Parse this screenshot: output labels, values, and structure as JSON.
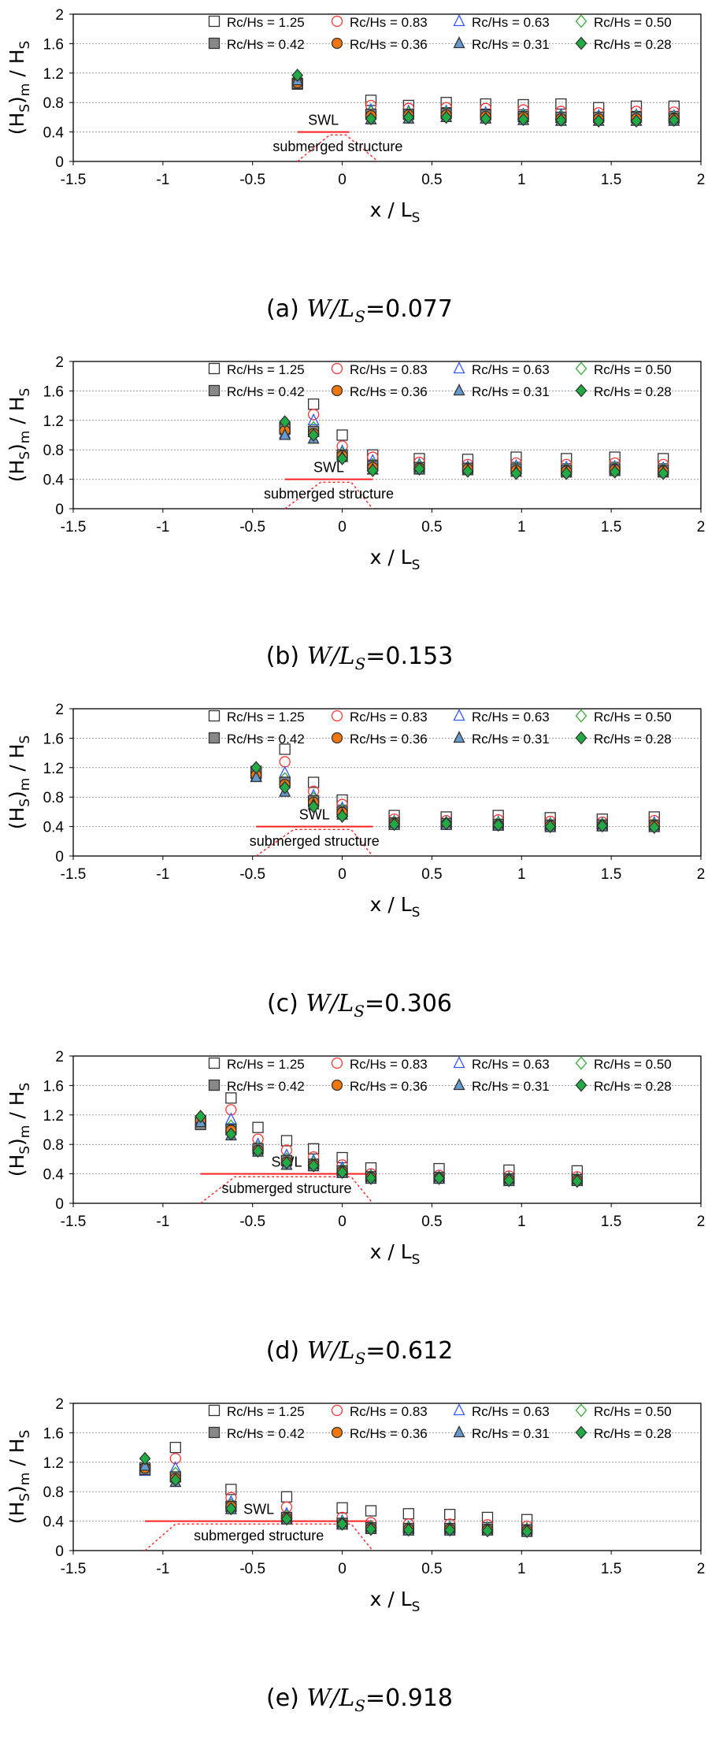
{
  "series_styles": [
    {
      "name": "Rc/Hs = 1.25",
      "marker": "square",
      "fill": "none",
      "stroke": "#333333"
    },
    {
      "name": "Rc/Hs = 0.83",
      "marker": "circle",
      "fill": "none",
      "stroke": "#ff3333"
    },
    {
      "name": "Rc/Hs = 0.63",
      "marker": "triangle",
      "fill": "none",
      "stroke": "#3355ff"
    },
    {
      "name": "Rc/Hs = 0.50",
      "marker": "diamond",
      "fill": "none",
      "stroke": "#33aa33"
    },
    {
      "name": "Rc/Hs = 0.42",
      "marker": "square",
      "fill": "#888888",
      "stroke": "#333333"
    },
    {
      "name": "Rc/Hs = 0.36",
      "marker": "circle",
      "fill": "#ee7711",
      "stroke": "#333333"
    },
    {
      "name": "Rc/Hs = 0.31",
      "marker": "triangle",
      "fill": "#6699cc",
      "stroke": "#333333"
    },
    {
      "name": "Rc/Hs = 0.28",
      "marker": "diamond",
      "fill": "#22aa44",
      "stroke": "#333333"
    }
  ],
  "colors": {
    "swl_line": "#ff2222",
    "grid": "#999999"
  },
  "chart_data": [
    {
      "type": "scatter",
      "caption_label": "(a)",
      "caption_ratio": "W/L",
      "caption_sub": "S",
      "caption_value": "=0.077",
      "xlabel": "x / L",
      "xlabel_sub": "S",
      "ylabel": "(H",
      "ylabel_sub1": "S",
      "ylabel_mid": ")",
      "ylabel_sub2": "m",
      "ylabel_end": " / H",
      "ylabel_sub3": "S",
      "xlim": [
        -1.5,
        2
      ],
      "ylim": [
        0,
        2
      ],
      "xticks": [
        -1.5,
        -1,
        -0.5,
        0,
        0.5,
        1,
        1.5,
        2
      ],
      "yticks": [
        0,
        0.4,
        0.8,
        1.2,
        1.6,
        2
      ],
      "swl_label": "SWL",
      "structure_label": "submerged structure",
      "swl_x": [
        -0.25,
        0.04
      ],
      "structure": {
        "toe_left": -0.25,
        "crest_left": -0.07,
        "crest_right": 0.02,
        "toe_right": 0.2
      },
      "x": [
        -0.25,
        0.16,
        0.37,
        0.58,
        0.8,
        1.01,
        1.22,
        1.43,
        1.64,
        1.85
      ],
      "series": [
        {
          "name": "Rc/Hs = 1.25",
          "values": [
            1.05,
            0.83,
            0.76,
            0.8,
            0.78,
            0.77,
            0.78,
            0.73,
            0.75,
            0.75
          ]
        },
        {
          "name": "Rc/Hs = 0.83",
          "values": [
            1.1,
            0.76,
            0.72,
            0.73,
            0.72,
            0.7,
            0.68,
            0.66,
            0.68,
            0.67
          ]
        },
        {
          "name": "Rc/Hs = 0.63",
          "values": [
            1.08,
            0.7,
            0.68,
            0.68,
            0.66,
            0.64,
            0.63,
            0.62,
            0.63,
            0.62
          ]
        },
        {
          "name": "Rc/Hs = 0.50",
          "values": [
            1.12,
            0.67,
            0.66,
            0.66,
            0.63,
            0.62,
            0.61,
            0.6,
            0.61,
            0.6
          ]
        },
        {
          "name": "Rc/Hs = 0.42",
          "values": [
            1.06,
            0.64,
            0.64,
            0.65,
            0.63,
            0.61,
            0.6,
            0.6,
            0.6,
            0.59
          ]
        },
        {
          "name": "Rc/Hs = 0.36",
          "values": [
            1.07,
            0.62,
            0.63,
            0.63,
            0.61,
            0.6,
            0.58,
            0.58,
            0.58,
            0.58
          ]
        },
        {
          "name": "Rc/Hs = 0.31",
          "values": [
            1.1,
            0.57,
            0.58,
            0.6,
            0.58,
            0.56,
            0.55,
            0.55,
            0.55,
            0.55
          ]
        },
        {
          "name": "Rc/Hs = 0.28",
          "values": [
            1.17,
            0.58,
            0.6,
            0.6,
            0.58,
            0.57,
            0.56,
            0.55,
            0.55,
            0.56
          ]
        }
      ]
    },
    {
      "type": "scatter",
      "caption_label": "(b)",
      "caption_ratio": "W/L",
      "caption_sub": "S",
      "caption_value": "=0.153",
      "xlabel": "x / L",
      "xlabel_sub": "S",
      "ylabel": "(H",
      "ylabel_sub1": "S",
      "ylabel_mid": ")",
      "ylabel_sub2": "m",
      "ylabel_end": " / H",
      "ylabel_sub3": "S",
      "xlim": [
        -1.5,
        2
      ],
      "ylim": [
        0,
        2
      ],
      "xticks": [
        -1.5,
        -1,
        -0.5,
        0,
        0.5,
        1,
        1.5,
        2
      ],
      "yticks": [
        0,
        0.4,
        0.8,
        1.2,
        1.6,
        2
      ],
      "swl_label": "SWL",
      "structure_label": "submerged structure",
      "swl_x": [
        -0.32,
        0.17
      ],
      "structure": {
        "toe_left": -0.32,
        "crest_left": -0.12,
        "crest_right": 0.05,
        "toe_right": 0.17
      },
      "x": [
        -0.32,
        -0.16,
        0.0,
        0.17,
        0.43,
        0.7,
        0.97,
        1.25,
        1.52,
        1.79
      ],
      "series": [
        {
          "name": "Rc/Hs = 1.25",
          "values": [
            1.1,
            1.42,
            1.0,
            0.73,
            0.68,
            0.67,
            0.7,
            0.68,
            0.7,
            0.68
          ]
        },
        {
          "name": "Rc/Hs = 0.83",
          "values": [
            1.05,
            1.28,
            0.85,
            0.7,
            0.63,
            0.6,
            0.62,
            0.6,
            0.62,
            0.6
          ]
        },
        {
          "name": "Rc/Hs = 0.63",
          "values": [
            1.02,
            1.2,
            0.78,
            0.65,
            0.6,
            0.57,
            0.58,
            0.56,
            0.57,
            0.55
          ]
        },
        {
          "name": "Rc/Hs = 0.50",
          "values": [
            1.12,
            1.1,
            0.75,
            0.6,
            0.58,
            0.55,
            0.55,
            0.53,
            0.55,
            0.53
          ]
        },
        {
          "name": "Rc/Hs = 0.42",
          "values": [
            1.08,
            1.05,
            0.73,
            0.58,
            0.56,
            0.55,
            0.54,
            0.52,
            0.54,
            0.52
          ]
        },
        {
          "name": "Rc/Hs = 0.36",
          "values": [
            1.06,
            1.02,
            0.72,
            0.56,
            0.55,
            0.54,
            0.52,
            0.51,
            0.53,
            0.51
          ]
        },
        {
          "name": "Rc/Hs = 0.31",
          "values": [
            1.0,
            0.95,
            0.7,
            0.53,
            0.53,
            0.52,
            0.5,
            0.49,
            0.51,
            0.49
          ]
        },
        {
          "name": "Rc/Hs = 0.28",
          "values": [
            1.18,
            1.0,
            0.68,
            0.52,
            0.54,
            0.51,
            0.48,
            0.48,
            0.5,
            0.48
          ]
        }
      ]
    },
    {
      "type": "scatter",
      "caption_label": "(c)",
      "caption_ratio": "W/L",
      "caption_sub": "S",
      "caption_value": "=0.306",
      "xlabel": "x / L",
      "xlabel_sub": "S",
      "ylabel": "(H",
      "ylabel_sub1": "S",
      "ylabel_mid": ")",
      "ylabel_sub2": "m",
      "ylabel_end": " / H",
      "ylabel_sub3": "S",
      "xlim": [
        -1.5,
        2
      ],
      "ylim": [
        0,
        2
      ],
      "xticks": [
        -1.5,
        -1,
        -0.5,
        0,
        0.5,
        1,
        1.5,
        2
      ],
      "yticks": [
        0,
        0.4,
        0.8,
        1.2,
        1.6,
        2
      ],
      "swl_label": "SWL",
      "structure_label": "submerged structure",
      "swl_x": [
        -0.48,
        0.17
      ],
      "structure": {
        "toe_left": -0.48,
        "crest_left": -0.27,
        "crest_right": 0.05,
        "toe_right": 0.17
      },
      "x": [
        -0.48,
        -0.32,
        -0.16,
        0.0,
        0.29,
        0.58,
        0.87,
        1.16,
        1.45,
        1.74
      ],
      "series": [
        {
          "name": "Rc/Hs = 1.25",
          "values": [
            1.15,
            1.45,
            1.0,
            0.76,
            0.55,
            0.53,
            0.55,
            0.52,
            0.5,
            0.53
          ]
        },
        {
          "name": "Rc/Hs = 0.83",
          "values": [
            1.12,
            1.28,
            0.88,
            0.7,
            0.5,
            0.48,
            0.49,
            0.47,
            0.46,
            0.48
          ]
        },
        {
          "name": "Rc/Hs = 0.63",
          "values": [
            1.08,
            1.13,
            0.82,
            0.65,
            0.47,
            0.46,
            0.46,
            0.44,
            0.44,
            0.45
          ]
        },
        {
          "name": "Rc/Hs = 0.50",
          "values": [
            1.1,
            1.05,
            0.78,
            0.62,
            0.46,
            0.45,
            0.45,
            0.43,
            0.43,
            0.43
          ]
        },
        {
          "name": "Rc/Hs = 0.42",
          "values": [
            1.12,
            1.0,
            0.75,
            0.6,
            0.45,
            0.44,
            0.43,
            0.42,
            0.42,
            0.42
          ]
        },
        {
          "name": "Rc/Hs = 0.36",
          "values": [
            1.1,
            0.97,
            0.73,
            0.59,
            0.44,
            0.43,
            0.42,
            0.41,
            0.41,
            0.41
          ]
        },
        {
          "name": "Rc/Hs = 0.31",
          "values": [
            1.07,
            0.87,
            0.7,
            0.56,
            0.42,
            0.42,
            0.41,
            0.39,
            0.4,
            0.39
          ]
        },
        {
          "name": "Rc/Hs = 0.28",
          "values": [
            1.2,
            0.93,
            0.67,
            0.54,
            0.43,
            0.44,
            0.42,
            0.4,
            0.41,
            0.39
          ]
        }
      ]
    },
    {
      "type": "scatter",
      "caption_label": "(d)",
      "caption_ratio": "W/L",
      "caption_sub": "S",
      "caption_value": "=0.612",
      "xlabel": "x / L",
      "xlabel_sub": "S",
      "ylabel": "(H",
      "ylabel_sub1": "S",
      "ylabel_mid": ")",
      "ylabel_sub2": "m",
      "ylabel_end": " / H",
      "ylabel_sub3": "S",
      "xlim": [
        -1.5,
        2
      ],
      "ylim": [
        0,
        2
      ],
      "xticks": [
        -1.5,
        -1,
        -0.5,
        0,
        0.5,
        1,
        1.5,
        2
      ],
      "yticks": [
        0,
        0.4,
        0.8,
        1.2,
        1.6,
        2
      ],
      "swl_label": "SWL",
      "structure_label": "submerged structure",
      "swl_x": [
        -0.79,
        0.17
      ],
      "structure": {
        "toe_left": -0.79,
        "crest_left": -0.6,
        "crest_right": 0.05,
        "toe_right": 0.17
      },
      "x": [
        -0.79,
        -0.62,
        -0.47,
        -0.31,
        -0.16,
        0.0,
        0.16,
        0.54,
        0.93,
        1.31
      ],
      "series": [
        {
          "name": "Rc/Hs = 1.25",
          "values": [
            1.12,
            1.43,
            1.03,
            0.85,
            0.74,
            0.62,
            0.48,
            0.47,
            0.45,
            0.44
          ]
        },
        {
          "name": "Rc/Hs = 0.83",
          "values": [
            1.1,
            1.27,
            0.87,
            0.72,
            0.63,
            0.52,
            0.4,
            0.38,
            0.37,
            0.36
          ]
        },
        {
          "name": "Rc/Hs = 0.63",
          "values": [
            1.08,
            1.14,
            0.8,
            0.65,
            0.58,
            0.48,
            0.38,
            0.36,
            0.35,
            0.34
          ]
        },
        {
          "name": "Rc/Hs = 0.50",
          "values": [
            1.1,
            1.05,
            0.76,
            0.6,
            0.55,
            0.45,
            0.37,
            0.35,
            0.34,
            0.33
          ]
        },
        {
          "name": "Rc/Hs = 0.42",
          "values": [
            1.07,
            1.0,
            0.74,
            0.58,
            0.53,
            0.44,
            0.36,
            0.35,
            0.33,
            0.32
          ]
        },
        {
          "name": "Rc/Hs = 0.36",
          "values": [
            1.13,
            0.99,
            0.72,
            0.56,
            0.52,
            0.43,
            0.35,
            0.34,
            0.32,
            0.31
          ]
        },
        {
          "name": "Rc/Hs = 0.31",
          "values": [
            1.1,
            0.92,
            0.7,
            0.52,
            0.5,
            0.41,
            0.33,
            0.33,
            0.3,
            0.3
          ]
        },
        {
          "name": "Rc/Hs = 0.28",
          "values": [
            1.18,
            0.94,
            0.71,
            0.55,
            0.51,
            0.42,
            0.34,
            0.34,
            0.31,
            0.3
          ]
        }
      ]
    },
    {
      "type": "scatter",
      "caption_label": "(e)",
      "caption_ratio": "W/L",
      "caption_sub": "S",
      "caption_value": "=0.918",
      "xlabel": "x / L",
      "xlabel_sub": "S",
      "ylabel": "(H",
      "ylabel_sub1": "S",
      "ylabel_mid": ")",
      "ylabel_sub2": "m",
      "ylabel_end": " / H",
      "ylabel_sub3": "S",
      "xlim": [
        -1.5,
        2
      ],
      "ylim": [
        0,
        2
      ],
      "xticks": [
        -1.5,
        -1,
        -0.5,
        0,
        0.5,
        1,
        1.5,
        2
      ],
      "yticks": [
        0,
        0.4,
        0.8,
        1.2,
        1.6,
        2
      ],
      "swl_label": "SWL",
      "structure_label": "submerged structure",
      "swl_x": [
        -1.1,
        0.17
      ],
      "structure": {
        "toe_left": -1.1,
        "crest_left": -0.93,
        "crest_right": 0.05,
        "toe_right": 0.17
      },
      "x": [
        -1.1,
        -0.93,
        -0.62,
        -0.31,
        0.0,
        0.16,
        0.37,
        0.6,
        0.81,
        1.03
      ],
      "series": [
        {
          "name": "Rc/Hs = 1.25",
          "values": [
            1.12,
            1.4,
            0.83,
            0.73,
            0.58,
            0.54,
            0.5,
            0.49,
            0.45,
            0.42
          ]
        },
        {
          "name": "Rc/Hs = 0.83",
          "values": [
            1.1,
            1.25,
            0.72,
            0.59,
            0.45,
            0.38,
            0.36,
            0.36,
            0.35,
            0.33
          ]
        },
        {
          "name": "Rc/Hs = 0.63",
          "values": [
            1.08,
            1.12,
            0.66,
            0.5,
            0.4,
            0.33,
            0.32,
            0.32,
            0.31,
            0.3
          ]
        },
        {
          "name": "Rc/Hs = 0.50",
          "values": [
            1.15,
            1.05,
            0.62,
            0.47,
            0.38,
            0.32,
            0.31,
            0.31,
            0.3,
            0.29
          ]
        },
        {
          "name": "Rc/Hs = 0.42",
          "values": [
            1.1,
            1.0,
            0.6,
            0.45,
            0.37,
            0.31,
            0.3,
            0.3,
            0.29,
            0.28
          ]
        },
        {
          "name": "Rc/Hs = 0.36",
          "values": [
            1.12,
            0.98,
            0.6,
            0.44,
            0.36,
            0.3,
            0.29,
            0.29,
            0.28,
            0.27
          ]
        },
        {
          "name": "Rc/Hs = 0.31",
          "values": [
            1.15,
            0.93,
            0.56,
            0.42,
            0.35,
            0.29,
            0.27,
            0.27,
            0.27,
            0.25
          ]
        },
        {
          "name": "Rc/Hs = 0.28",
          "values": [
            1.25,
            0.96,
            0.57,
            0.43,
            0.36,
            0.29,
            0.28,
            0.28,
            0.27,
            0.26
          ]
        }
      ]
    }
  ]
}
